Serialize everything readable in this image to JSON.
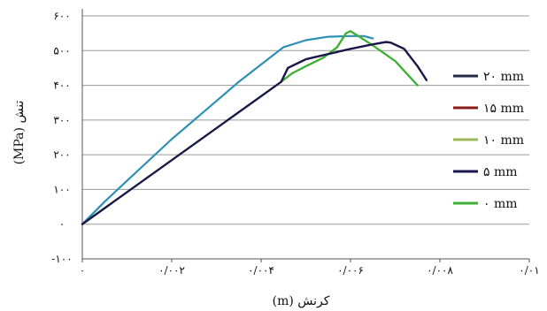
{
  "chart_data": {
    "type": "line",
    "xlabel": "کرنش (m)",
    "ylabel": "تنش (MPa)",
    "xlim": [
      0,
      0.01
    ],
    "ylim": [
      -100,
      600
    ],
    "grid": true,
    "legend_position": "right",
    "x_ticks": [
      {
        "value": 0,
        "label": "۰"
      },
      {
        "value": 0.002,
        "label": "۰/۰۰۲"
      },
      {
        "value": 0.004,
        "label": "۰/۰۰۴"
      },
      {
        "value": 0.006,
        "label": "۰/۰۰۶"
      },
      {
        "value": 0.008,
        "label": "۰/۰۰۸"
      },
      {
        "value": 0.01,
        "label": "۰/۰۱"
      }
    ],
    "y_ticks": [
      {
        "value": 600,
        "label": "۶۰۰"
      },
      {
        "value": 500,
        "label": "۵۰۰"
      },
      {
        "value": 400,
        "label": "۴۰۰"
      },
      {
        "value": 300,
        "label": "۳۰۰"
      },
      {
        "value": 200,
        "label": "۲۰۰"
      },
      {
        "value": 100,
        "label": "۱۰۰"
      },
      {
        "value": 0,
        "label": "۰"
      },
      {
        "value": -100,
        "label": "-۱۰۰"
      }
    ],
    "series": [
      {
        "name": "۲۰ mm",
        "color": "#1f2a44",
        "points": [
          [
            0,
            0
          ],
          [
            0.00445,
            410
          ],
          [
            0.0046,
            450
          ],
          [
            0.005,
            475
          ],
          [
            0.0055,
            490
          ],
          [
            0.006,
            505
          ],
          [
            0.0065,
            518
          ],
          [
            0.0068,
            525
          ],
          [
            0.0069,
            523
          ],
          [
            0.0072,
            505
          ],
          [
            0.0075,
            455
          ],
          [
            0.0077,
            415
          ]
        ]
      },
      {
        "name": "۱۵ mm",
        "color": "#8b1a1a",
        "points": [
          [
            0,
            0
          ],
          [
            0.00445,
            410
          ],
          [
            0.0046,
            450
          ],
          [
            0.005,
            475
          ],
          [
            0.0055,
            490
          ],
          [
            0.006,
            505
          ],
          [
            0.0065,
            518
          ],
          [
            0.0068,
            525
          ],
          [
            0.0069,
            523
          ],
          [
            0.0072,
            505
          ],
          [
            0.0075,
            455
          ],
          [
            0.0077,
            415
          ]
        ]
      },
      {
        "name": "۱۰ mm",
        "color": "#9bbb59",
        "points": [
          [
            0,
            0
          ],
          [
            0.00445,
            410
          ],
          [
            0.0047,
            435
          ],
          [
            0.005,
            455
          ],
          [
            0.0054,
            480
          ],
          [
            0.0057,
            510
          ],
          [
            0.0059,
            550
          ],
          [
            0.006,
            556
          ],
          [
            0.0062,
            540
          ],
          [
            0.0065,
            515
          ],
          [
            0.007,
            470
          ],
          [
            0.0075,
            400
          ]
        ]
      },
      {
        "name": "۵ mm",
        "color": "#1a1650",
        "points": [
          [
            0,
            0
          ],
          [
            0.00445,
            410
          ],
          [
            0.0046,
            450
          ],
          [
            0.005,
            475
          ],
          [
            0.0055,
            490
          ],
          [
            0.006,
            505
          ],
          [
            0.0065,
            518
          ],
          [
            0.0068,
            525
          ],
          [
            0.0069,
            523
          ],
          [
            0.0072,
            505
          ],
          [
            0.0075,
            455
          ],
          [
            0.0077,
            415
          ]
        ]
      },
      {
        "name": "۰ mm",
        "color": "#3cb034",
        "points": [
          [
            0,
            0
          ],
          [
            0.00445,
            410
          ],
          [
            0.0047,
            435
          ],
          [
            0.005,
            455
          ],
          [
            0.0054,
            480
          ],
          [
            0.0057,
            510
          ],
          [
            0.0059,
            550
          ],
          [
            0.006,
            556
          ],
          [
            0.0062,
            540
          ],
          [
            0.0065,
            515
          ],
          [
            0.007,
            470
          ],
          [
            0.0075,
            400
          ]
        ]
      },
      {
        "name": "",
        "color": "#2e8fb5",
        "points": [
          [
            0,
            0
          ],
          [
            0.0005,
            65
          ],
          [
            0.001,
            125
          ],
          [
            0.0015,
            185
          ],
          [
            0.002,
            245
          ],
          [
            0.0025,
            300
          ],
          [
            0.003,
            355
          ],
          [
            0.0035,
            410
          ],
          [
            0.004,
            460
          ],
          [
            0.0045,
            510
          ],
          [
            0.005,
            530
          ],
          [
            0.0055,
            540
          ],
          [
            0.006,
            542
          ],
          [
            0.0063,
            542
          ],
          [
            0.0065,
            535
          ]
        ]
      }
    ]
  }
}
